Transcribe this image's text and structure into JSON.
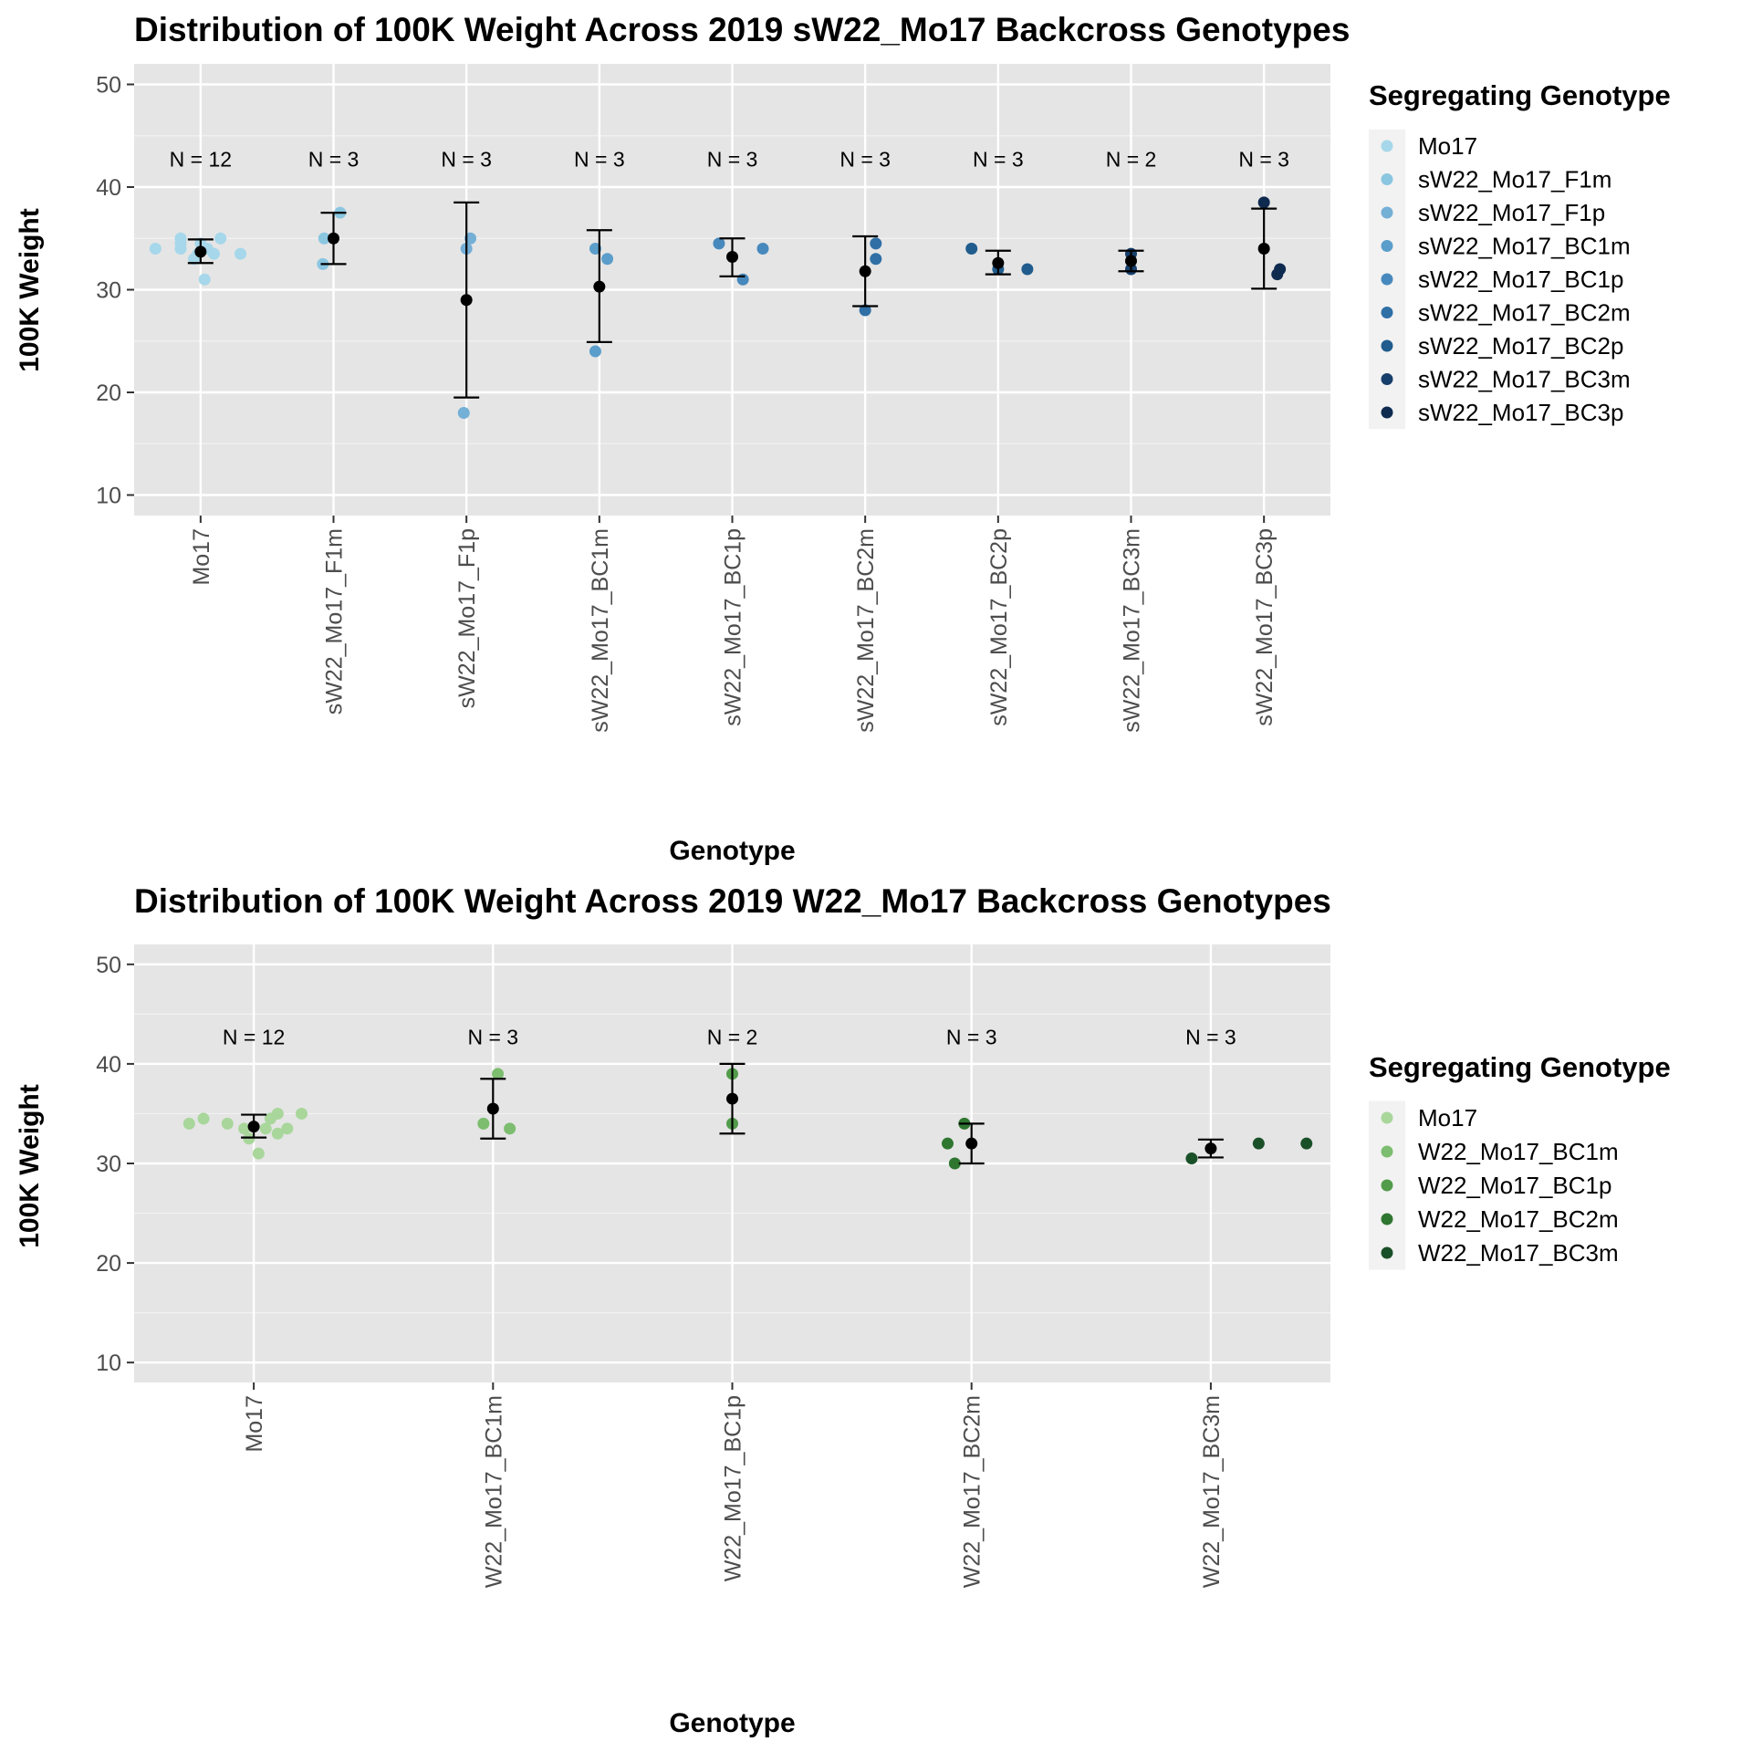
{
  "chart_data": [
    {
      "type": "scatter",
      "title": "Distribution of 100K Weight Across 2019 sW22_Mo17 Backcross Genotypes",
      "xlabel": "Genotype",
      "ylabel": "100K Weight",
      "ylim": [
        8,
        52
      ],
      "yticks": [
        10,
        20,
        30,
        40,
        50
      ],
      "grid": true,
      "legend_position": "right",
      "legend_title": "Segregating Genotype",
      "n_label_y": 42.7,
      "categories": [
        "Mo17",
        "sW22_Mo17_F1m",
        "sW22_Mo17_F1p",
        "sW22_Mo17_BC1m",
        "sW22_Mo17_BC1p",
        "sW22_Mo17_BC2m",
        "sW22_Mo17_BC2p",
        "sW22_Mo17_BC3m",
        "sW22_Mo17_BC3p"
      ],
      "colors": [
        "#a6d7ea",
        "#8ac6e0",
        "#74afd6",
        "#5b9ecb",
        "#4789bd",
        "#2f6fa6",
        "#205c8d",
        "#173f6b",
        "#0f2a4f"
      ],
      "series": [
        {
          "name": "Mo17",
          "n_label": "N = 12",
          "points": [
            [
              -0.34,
              34.0
            ],
            [
              -0.15,
              35.0
            ],
            [
              -0.15,
              34.5
            ],
            [
              -0.15,
              34.0
            ],
            [
              -0.05,
              33.0
            ],
            [
              0.03,
              31.0
            ],
            [
              0.05,
              34.0
            ],
            [
              0.1,
              33.5
            ],
            [
              0.15,
              35.0
            ],
            [
              0.3,
              33.5
            ],
            [
              0.0,
              34.5
            ],
            [
              -0.02,
              33.5
            ]
          ],
          "mean": 33.7,
          "err_low": 32.6,
          "err_high": 34.9
        },
        {
          "name": "sW22_Mo17_F1m",
          "n_label": "N = 3",
          "points": [
            [
              -0.08,
              32.5
            ],
            [
              -0.07,
              35.0
            ],
            [
              0.05,
              37.5
            ]
          ],
          "mean": 35.0,
          "err_low": 32.5,
          "err_high": 37.5
        },
        {
          "name": "sW22_Mo17_F1p",
          "n_label": "N = 3",
          "points": [
            [
              -0.02,
              18.0
            ],
            [
              0.0,
              34.0
            ],
            [
              0.03,
              35.0
            ]
          ],
          "mean": 29.0,
          "err_low": 19.5,
          "err_high": 38.5
        },
        {
          "name": "sW22_Mo17_BC1m",
          "n_label": "N = 3",
          "points": [
            [
              -0.03,
              24.0
            ],
            [
              -0.03,
              34.0
            ],
            [
              0.06,
              33.0
            ]
          ],
          "mean": 30.3,
          "err_low": 24.9,
          "err_high": 35.8
        },
        {
          "name": "sW22_Mo17_BC1p",
          "n_label": "N = 3",
          "points": [
            [
              -0.1,
              34.5
            ],
            [
              0.08,
              31.0
            ],
            [
              0.23,
              34.0
            ]
          ],
          "mean": 33.2,
          "err_low": 31.3,
          "err_high": 35.0
        },
        {
          "name": "sW22_Mo17_BC2m",
          "n_label": "N = 3",
          "points": [
            [
              0.0,
              28.0
            ],
            [
              0.08,
              33.0
            ],
            [
              0.08,
              34.5
            ]
          ],
          "mean": 31.8,
          "err_low": 28.4,
          "err_high": 35.2
        },
        {
          "name": "sW22_Mo17_BC2p",
          "n_label": "N = 3",
          "points": [
            [
              -0.2,
              34.0
            ],
            [
              0.0,
              32.0
            ],
            [
              0.22,
              32.0
            ]
          ],
          "mean": 32.6,
          "err_low": 31.5,
          "err_high": 33.8
        },
        {
          "name": "sW22_Mo17_BC3m",
          "n_label": "N = 2",
          "points": [
            [
              0.0,
              32.0
            ],
            [
              0.0,
              33.5
            ]
          ],
          "mean": 32.8,
          "err_low": 31.8,
          "err_high": 33.8
        },
        {
          "name": "sW22_Mo17_BC3p",
          "n_label": "N = 3",
          "points": [
            [
              0.0,
              38.5
            ],
            [
              0.1,
              31.5
            ],
            [
              0.12,
              32.0
            ]
          ],
          "mean": 34.0,
          "err_low": 30.1,
          "err_high": 37.9
        }
      ]
    },
    {
      "type": "scatter",
      "title": "Distribution of 100K Weight Across 2019 W22_Mo17 Backcross Genotypes",
      "xlabel": "Genotype",
      "ylabel": "100K Weight",
      "ylim": [
        8,
        52
      ],
      "yticks": [
        10,
        20,
        30,
        40,
        50
      ],
      "grid": true,
      "legend_position": "right",
      "legend_title": "Segregating Genotype",
      "n_label_y": 42.7,
      "categories": [
        "Mo17",
        "W22_Mo17_BC1m",
        "W22_Mo17_BC1p",
        "W22_Mo17_BC2m",
        "W22_Mo17_BC3m"
      ],
      "colors": [
        "#a8d69b",
        "#7cbd6f",
        "#529b4b",
        "#2f7630",
        "#1a5028"
      ],
      "series": [
        {
          "name": "Mo17",
          "n_label": "N = 12",
          "points": [
            [
              -0.27,
              34.0
            ],
            [
              -0.21,
              34.5
            ],
            [
              -0.11,
              34.0
            ],
            [
              -0.04,
              33.5
            ],
            [
              -0.02,
              32.5
            ],
            [
              0.02,
              31.0
            ],
            [
              0.05,
              33.5
            ],
            [
              0.07,
              34.5
            ],
            [
              0.1,
              33.0
            ],
            [
              0.1,
              35.0
            ],
            [
              0.14,
              33.5
            ],
            [
              0.2,
              35.0
            ]
          ],
          "mean": 33.7,
          "err_low": 32.6,
          "err_high": 34.9
        },
        {
          "name": "W22_Mo17_BC1m",
          "n_label": "N = 3",
          "points": [
            [
              -0.04,
              34.0
            ],
            [
              0.02,
              39.0
            ],
            [
              0.07,
              33.5
            ]
          ],
          "mean": 35.5,
          "err_low": 32.5,
          "err_high": 38.5
        },
        {
          "name": "W22_Mo17_BC1p",
          "n_label": "N = 2",
          "points": [
            [
              0.0,
              34.0
            ],
            [
              0.0,
              39.0
            ]
          ],
          "mean": 36.5,
          "err_low": 33.0,
          "err_high": 40.0
        },
        {
          "name": "W22_Mo17_BC2m",
          "n_label": "N = 3",
          "points": [
            [
              -0.1,
              32.0
            ],
            [
              -0.07,
              30.0
            ],
            [
              -0.03,
              34.0
            ]
          ],
          "mean": 32.0,
          "err_low": 30.0,
          "err_high": 34.0
        },
        {
          "name": "W22_Mo17_BC3m",
          "n_label": "N = 3",
          "points": [
            [
              -0.08,
              30.5
            ],
            [
              0.2,
              32.0
            ],
            [
              0.4,
              32.0
            ]
          ],
          "mean": 31.5,
          "err_low": 30.6,
          "err_high": 32.4
        }
      ]
    }
  ]
}
